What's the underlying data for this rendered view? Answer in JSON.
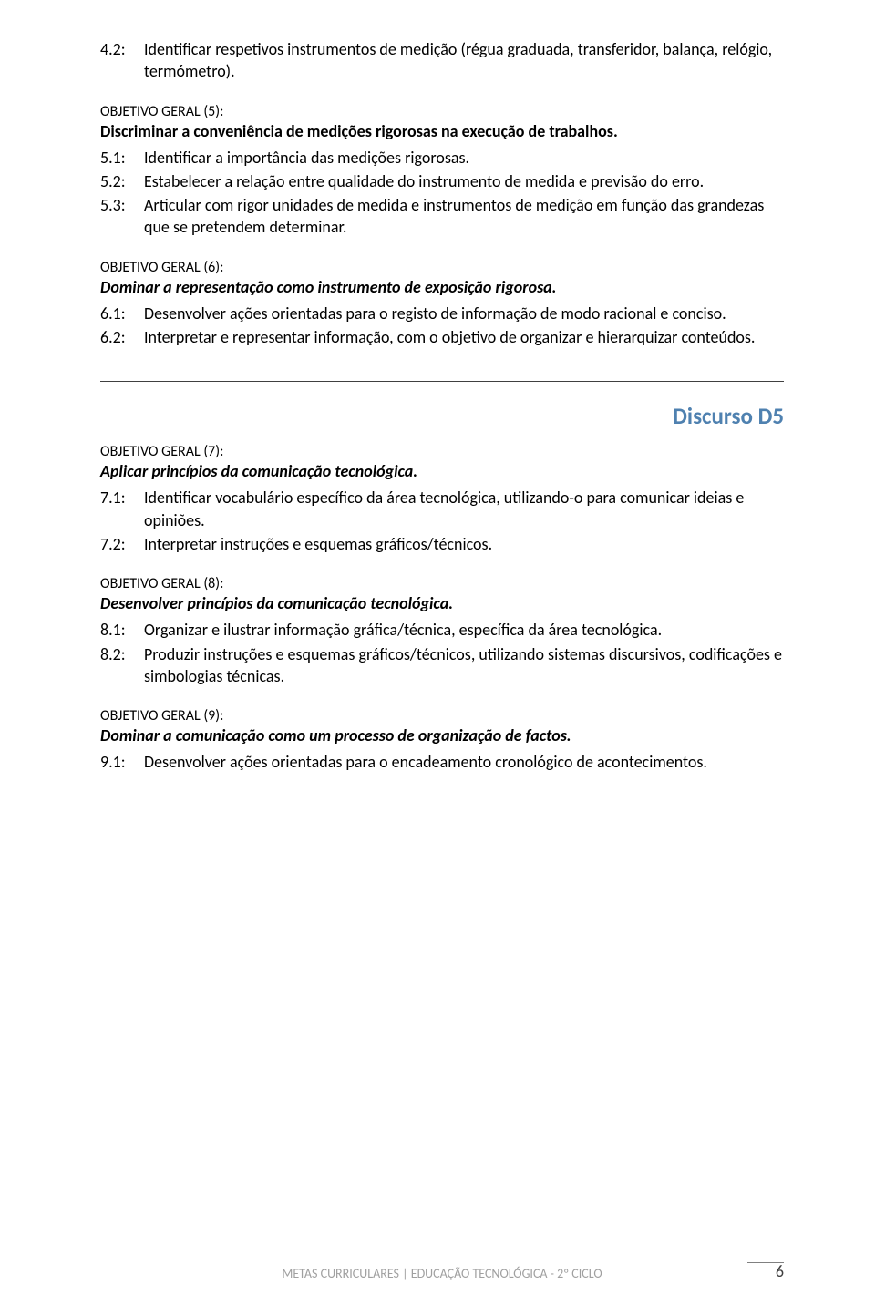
{
  "text_color": "#000000",
  "accent_color": "#4f81b0",
  "footer_color": "#a0a0a0",
  "background_color": "#ffffff",
  "body_fontsize": 18,
  "label_fontsize": 16,
  "heading_fontsize": 25,
  "footer_fontsize": 14,
  "obj4": {
    "item2": {
      "num": "4.2:",
      "text": "Identificar respetivos instrumentos de medição (régua graduada, transferidor, balança, relógio, termómetro)."
    }
  },
  "obj5": {
    "label": "OBJETIVO GERAL (5):",
    "title": "Discriminar a conveniência de medições rigorosas na execução de trabalhos.",
    "item1": {
      "num": "5.1:",
      "text": "Identificar a importância das medições rigorosas."
    },
    "item2": {
      "num": "5.2:",
      "text": "Estabelecer a relação entre qualidade do instrumento de medida e previsão do erro."
    },
    "item3": {
      "num": "5.3:",
      "text": "Articular com rigor unidades de medida e instrumentos de medição em função das grandezas que se pretendem determinar."
    }
  },
  "obj6": {
    "label": "OBJETIVO GERAL (6):",
    "title": "Dominar a representação como instrumento de exposição rigorosa.",
    "item1": {
      "num": "6.1:",
      "text": "Desenvolver ações orientadas para o registo de informação de modo racional e conciso."
    },
    "item2": {
      "num": "6.2:",
      "text": "Interpretar e representar informação, com o objetivo de organizar e hierarquizar conteúdos."
    }
  },
  "section_d5": "Discurso D5",
  "obj7": {
    "label": "OBJETIVO GERAL (7):",
    "title": "Aplicar princípios da comunicação tecnológica.",
    "item1": {
      "num": "7.1:",
      "text": "Identificar vocabulário específico da área tecnológica, utilizando-o para comunicar ideias e opiniões."
    },
    "item2": {
      "num": "7.2:",
      "text": "Interpretar instruções e esquemas gráficos/técnicos."
    }
  },
  "obj8": {
    "label": "OBJETIVO GERAL (8):",
    "title": "Desenvolver princípios da comunicação tecnológica.",
    "item1": {
      "num": "8.1:",
      "text": "Organizar e ilustrar informação gráfica/técnica, específica da área tecnológica."
    },
    "item2": {
      "num": "8.2:",
      "text": "Produzir instruções e esquemas gráficos/técnicos, utilizando sistemas discursivos, codificações e simbologias técnicas."
    }
  },
  "obj9": {
    "label": "OBJETIVO GERAL (9):",
    "title": "Dominar a comunicação como um processo de organização de factos.",
    "item1": {
      "num": "9.1:",
      "text": "Desenvolver ações orientadas para o encadeamento cronológico de acontecimentos."
    }
  },
  "footer": {
    "text": "METAS CURRICULARES | EDUCAÇÃO TECNOLÓGICA - 2º CICLO",
    "page": "6"
  }
}
